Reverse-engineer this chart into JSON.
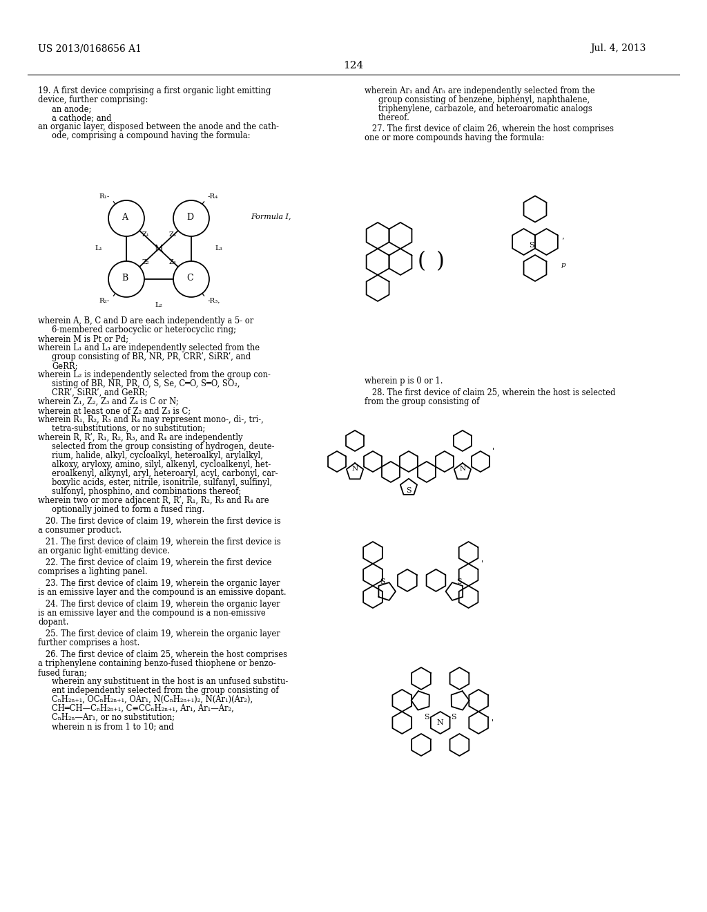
{
  "header_left": "US 2013/0168656 A1",
  "header_right": "Jul. 4, 2013",
  "page_number": "124",
  "bg_color": "#ffffff"
}
